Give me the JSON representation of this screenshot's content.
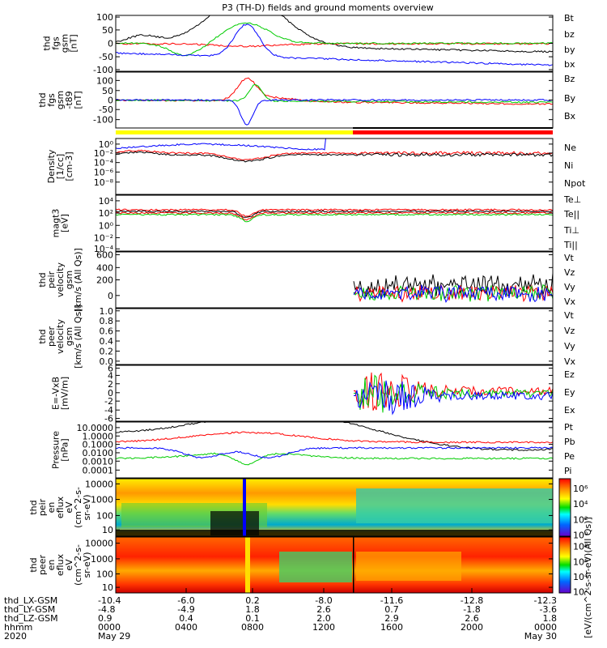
{
  "title": "P3 (TH-D) fields and ground moments overview",
  "colors": {
    "black": "#000000",
    "red": "#ff0000",
    "green": "#00cc00",
    "blue": "#0000ff",
    "yellow": "#ffff00"
  },
  "chart_data": [
    {
      "type": "line",
      "panel": "fgs_gsm",
      "ylabel": [
        "thd",
        "fgs",
        "gsm",
        "[nT]"
      ],
      "yticks": [
        "100",
        "50",
        "0",
        "-50",
        "-100"
      ],
      "ylim": [
        -100,
        100
      ],
      "series": [
        {
          "name": "Bt",
          "color": "#000000"
        },
        {
          "name": "bz",
          "color": "#ff0000"
        },
        {
          "name": "by",
          "color": "#00cc00"
        },
        {
          "name": "bx",
          "color": "#0000ff"
        }
      ]
    },
    {
      "type": "line",
      "panel": "fgs_gsm_sm",
      "ylabel": [
        "thd",
        "fgs",
        "gsm",
        "-t89",
        "[nT]"
      ],
      "yticks": [
        "100",
        "50",
        "0",
        "-50",
        "-100"
      ],
      "ylim": [
        -120,
        120
      ],
      "series": [
        {
          "name": "Bz",
          "color": "#ff0000"
        },
        {
          "name": "By",
          "color": "#00cc00"
        },
        {
          "name": "Bx",
          "color": "#0000ff"
        }
      ]
    },
    {
      "type": "line",
      "panel": "density",
      "ylabel": [
        "Density",
        "[1/cc]",
        "[cm-3]"
      ],
      "yticks": [
        "10⁰",
        "10⁻²",
        "10⁻⁴",
        "10⁻⁶",
        "10⁻⁸"
      ],
      "ylog": true,
      "series": [
        {
          "name": "Ne",
          "color": "#ff0000"
        },
        {
          "name": "Ni",
          "color": "#000000"
        },
        {
          "name": "Npot",
          "color": "#0000ff"
        }
      ]
    },
    {
      "type": "line",
      "panel": "temperature",
      "ylabel": [
        "magt3",
        "[eV]"
      ],
      "yticks": [
        "10⁴",
        "10²",
        "10⁰",
        "10⁻²",
        "10⁻⁴"
      ],
      "ylog": true,
      "series": [
        {
          "name": "Te⊥",
          "color": "#ff0000"
        },
        {
          "name": "Te||",
          "color": "#000000"
        },
        {
          "name": "Ti⊥",
          "color": "#ff0000"
        },
        {
          "name": "Ti||",
          "color": "#00cc00"
        }
      ]
    },
    {
      "type": "line",
      "panel": "peir_velocity",
      "ylabel": [
        "thd",
        "peir",
        "velocity",
        "gsm",
        "[km/s (All Qs)]"
      ],
      "yticks": [
        "600",
        "400",
        "200",
        "0"
      ],
      "ylim": [
        -50,
        650
      ],
      "series": [
        {
          "name": "Vt",
          "color": "#000000"
        },
        {
          "name": "Vz",
          "color": "#ff0000"
        },
        {
          "name": "Vy",
          "color": "#00cc00"
        },
        {
          "name": "Vx",
          "color": "#0000ff"
        }
      ]
    },
    {
      "type": "line",
      "panel": "peer_velocity",
      "ylabel": [
        "thd",
        "peer",
        "velocity",
        "gsm",
        "[km/s (All Qs)]"
      ],
      "yticks": [
        "1.0",
        "0.8",
        "0.6",
        "0.4",
        "0.2",
        "0.0"
      ],
      "ylim": [
        0,
        1
      ],
      "series": [
        {
          "name": "Vt",
          "color": "#000000"
        },
        {
          "name": "Vz",
          "color": "#ff0000"
        },
        {
          "name": "Vy",
          "color": "#00cc00"
        },
        {
          "name": "Vx",
          "color": "#0000ff"
        }
      ]
    },
    {
      "type": "line",
      "panel": "efield",
      "ylabel": [
        "E=-VxB",
        "[mV/m]"
      ],
      "yticks": [
        "6",
        "4",
        "2",
        "0",
        "-2",
        "-4",
        "-6"
      ],
      "ylim": [
        -6,
        6
      ],
      "series": [
        {
          "name": "Ez",
          "color": "#ff0000"
        },
        {
          "name": "Ey",
          "color": "#00cc00"
        },
        {
          "name": "Ex",
          "color": "#0000ff"
        }
      ]
    },
    {
      "type": "line",
      "panel": "pressure",
      "ylabel": [
        "Pressure",
        "[nPa]"
      ],
      "yticks": [
        "10.0000",
        "1.0000",
        "0.1000",
        "0.0100",
        "0.0010",
        "0.0001"
      ],
      "ylog": true,
      "series": [
        {
          "name": "Pt",
          "color": "#000000"
        },
        {
          "name": "Pb",
          "color": "#ff0000"
        },
        {
          "name": "Pe",
          "color": "#00cc00"
        },
        {
          "name": "Pi",
          "color": "#0000ff"
        }
      ]
    },
    {
      "type": "heatmap",
      "panel": "peir_eflux",
      "ylabel": [
        "thd",
        "peir",
        "en",
        "eflux",
        "eV",
        "(cm^2-s-",
        "sr-eV)"
      ],
      "yticks": [
        "10000",
        "1000",
        "100",
        "10"
      ],
      "colorbar": [
        "10⁶",
        "10⁴",
        "10²",
        "10⁰"
      ]
    },
    {
      "type": "heatmap",
      "panel": "peer_eflux",
      "ylabel": [
        "thd",
        "peer",
        "en",
        "eflux",
        "eV",
        "(cm^2-s-",
        "sr-eV)"
      ],
      "yticks": [
        "10000",
        "1000",
        "100",
        "10"
      ],
      "colorbar": [
        "10⁸",
        "10⁶",
        "10⁴",
        "10²"
      ]
    }
  ],
  "colorbar_label": "[eV/(cm^2-s-sr-eV)(All Qs)]",
  "xaxis": {
    "rows": [
      {
        "label": "thd_LX-GSM",
        "values": [
          "-10.4",
          "-6.0",
          "0.2",
          "-8.0",
          "-11.6",
          "-12.8",
          "-12.3"
        ]
      },
      {
        "label": "thd_LY-GSM",
        "values": [
          "-4.8",
          "-4.9",
          "1.8",
          "2.6",
          "0.7",
          "-1.8",
          "-3.6"
        ]
      },
      {
        "label": "thd_LZ-GSM",
        "values": [
          "0.9",
          "0.4",
          "0.1",
          "2.0",
          "2.9",
          "2.6",
          "1.8"
        ]
      },
      {
        "label": "hhmm",
        "values": [
          "0000",
          "0400",
          "0800",
          "1200",
          "1600",
          "2000",
          "0000"
        ]
      },
      {
        "label": "2020",
        "values": [
          "May 29",
          "",
          "",
          "",
          "",
          "",
          "May 30"
        ]
      }
    ]
  }
}
